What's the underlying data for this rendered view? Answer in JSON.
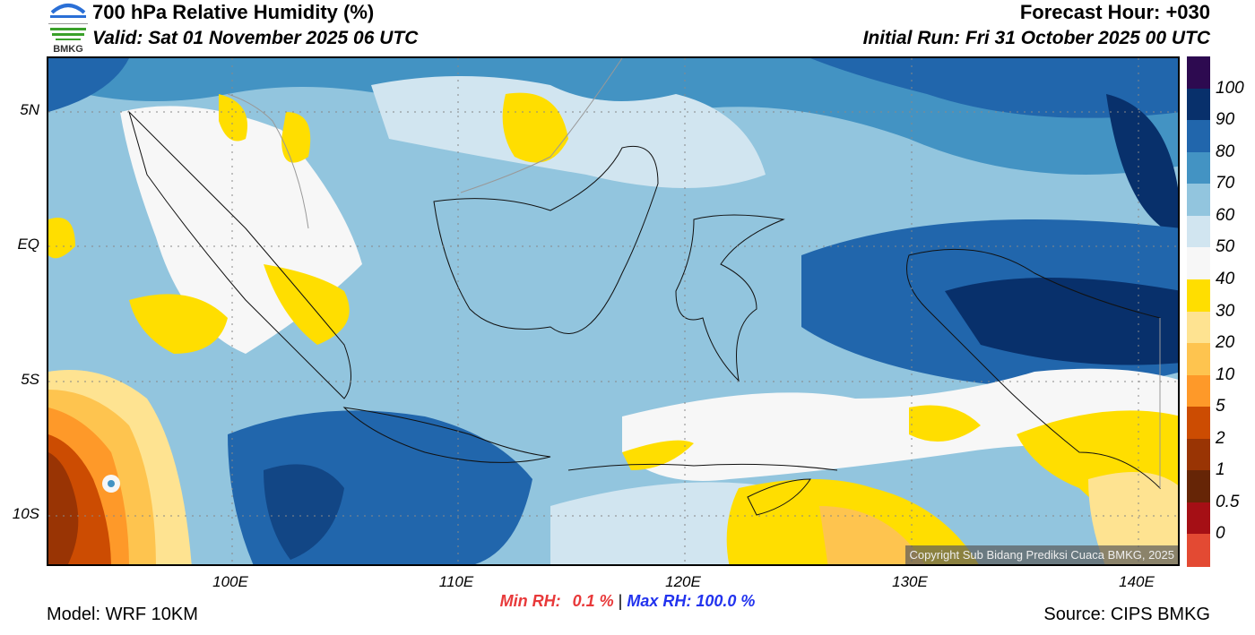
{
  "header": {
    "title": "700 hPa Relative Humidity (%)",
    "valid": "Valid: Sat 01 November 2025 06 UTC",
    "forecast_hour": "Forecast Hour: +030",
    "initial_run": "Initial Run: Fri 31 October 2025 00 UTC",
    "logo_text": "BMKG"
  },
  "axes": {
    "lon_labels": [
      "100E",
      "110E",
      "120E",
      "130E",
      "140E"
    ],
    "lat_labels": [
      "5N",
      "EQ",
      "5S",
      "10S"
    ]
  },
  "colorbar": {
    "labels": [
      "100",
      "90",
      "80",
      "70",
      "60",
      "50",
      "40",
      "30",
      "20",
      "10",
      "5",
      "2",
      "1",
      "0.5",
      "0"
    ],
    "colors": [
      "#2d0a50",
      "#08306b",
      "#2166ac",
      "#4393c3",
      "#92c5de",
      "#d1e5f0",
      "#f7f7f7",
      "#ffde00",
      "#fee391",
      "#fec44f",
      "#fe9929",
      "#cc4c02",
      "#993404",
      "#662506",
      "#a50f15",
      "#e34a33"
    ]
  },
  "stats": {
    "min_label": "Min RH:",
    "min_value": "0.1 %",
    "separator": "|",
    "max_label": "Max RH:",
    "max_value": "100.0 %",
    "min_color": "#e8393a",
    "max_color": "#2233ee"
  },
  "footer": {
    "model": "Model: WRF 10KM",
    "source": "Source: CIPS BMKG",
    "copyright": "Copyright Sub Bidang Prediksi Cuaca BMKG, 2025"
  }
}
